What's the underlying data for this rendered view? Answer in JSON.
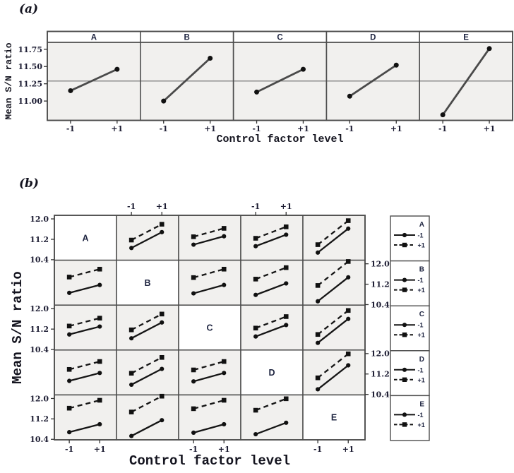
{
  "colors": {
    "panel_bg": "#f1f0ee",
    "diagonal_bg": "#ffffff",
    "border": "#4d4d4d",
    "line_a": "#4a4a4a",
    "line_b": "#151515",
    "marker": "#111111",
    "ref_line": "#8c8c8c",
    "tick_text": "#1d1d33"
  },
  "chart_data": [
    {
      "id": "a",
      "label": "(a)",
      "type": "line",
      "subtype": "main-effects-plot",
      "ylabel": "Mean S/N ratio",
      "xlabel": "Control factor level",
      "x_ticklabels": [
        "-1",
        "+1"
      ],
      "yticks": [
        {
          "label": "11.75",
          "v": 11.75
        },
        {
          "label": "11.50",
          "v": 11.5
        },
        {
          "label": "11.25",
          "v": 11.25
        },
        {
          "label": "11.00",
          "v": 11.0
        }
      ],
      "ylim": [
        10.72,
        11.85
      ],
      "ref_line_mean": 11.29,
      "panels": [
        {
          "factor": "A",
          "values": [
            11.15,
            11.46
          ]
        },
        {
          "factor": "B",
          "values": [
            11.0,
            11.62
          ]
        },
        {
          "factor": "C",
          "values": [
            11.13,
            11.46
          ]
        },
        {
          "factor": "D",
          "values": [
            11.07,
            11.52
          ]
        },
        {
          "factor": "E",
          "values": [
            10.8,
            11.76
          ]
        }
      ]
    },
    {
      "id": "b",
      "label": "(b)",
      "type": "line",
      "subtype": "interaction-plot-matrix",
      "ylabel": "Mean S/N ratio",
      "xlabel": "Control factor level",
      "factors": [
        "A",
        "B",
        "C",
        "D",
        "E"
      ],
      "x_ticklabels": [
        "-1",
        "+1"
      ],
      "yticks": [
        {
          "label": "12.0",
          "v": 12.0
        },
        {
          "label": "11.2",
          "v": 11.2
        },
        {
          "label": "10.4",
          "v": 10.4
        }
      ],
      "ylim": [
        10.38,
        12.14
      ],
      "legend": {
        "items": [
          {
            "label": "-1",
            "line": "solid",
            "marker": "circle"
          },
          {
            "label": "+1",
            "line": "dashed",
            "marker": "square"
          }
        ]
      },
      "cells": [
        {
          "row": "A",
          "col": "B",
          "solid": [
            10.86,
            11.48
          ],
          "dashed": [
            11.17,
            11.79
          ]
        },
        {
          "row": "A",
          "col": "C",
          "solid": [
            10.99,
            11.32
          ],
          "dashed": [
            11.3,
            11.63
          ]
        },
        {
          "row": "A",
          "col": "D",
          "solid": [
            10.93,
            11.38
          ],
          "dashed": [
            11.24,
            11.69
          ]
        },
        {
          "row": "A",
          "col": "E",
          "solid": [
            10.68,
            11.62
          ],
          "dashed": [
            10.99,
            11.93
          ]
        },
        {
          "row": "B",
          "col": "A",
          "solid": [
            10.86,
            11.17
          ],
          "dashed": [
            11.48,
            11.79
          ]
        },
        {
          "row": "B",
          "col": "C",
          "solid": [
            10.84,
            11.17
          ],
          "dashed": [
            11.46,
            11.79
          ]
        },
        {
          "row": "B",
          "col": "D",
          "solid": [
            10.78,
            11.23
          ],
          "dashed": [
            11.4,
            11.85
          ]
        },
        {
          "row": "B",
          "col": "E",
          "solid": [
            10.53,
            11.47
          ],
          "dashed": [
            11.15,
            12.09
          ]
        },
        {
          "row": "C",
          "col": "A",
          "solid": [
            10.99,
            11.3
          ],
          "dashed": [
            11.32,
            11.63
          ]
        },
        {
          "row": "C",
          "col": "B",
          "solid": [
            10.84,
            11.46
          ],
          "dashed": [
            11.17,
            11.79
          ]
        },
        {
          "row": "C",
          "col": "D",
          "solid": [
            10.91,
            11.36
          ],
          "dashed": [
            11.24,
            11.69
          ]
        },
        {
          "row": "C",
          "col": "E",
          "solid": [
            10.66,
            11.6
          ],
          "dashed": [
            10.99,
            11.93
          ]
        },
        {
          "row": "D",
          "col": "A",
          "solid": [
            10.93,
            11.24
          ],
          "dashed": [
            11.38,
            11.69
          ]
        },
        {
          "row": "D",
          "col": "B",
          "solid": [
            10.78,
            11.4
          ],
          "dashed": [
            11.23,
            11.85
          ]
        },
        {
          "row": "D",
          "col": "C",
          "solid": [
            10.91,
            11.24
          ],
          "dashed": [
            11.36,
            11.69
          ]
        },
        {
          "row": "D",
          "col": "E",
          "solid": [
            10.6,
            11.54
          ],
          "dashed": [
            11.05,
            11.99
          ]
        },
        {
          "row": "E",
          "col": "A",
          "solid": [
            10.68,
            10.99
          ],
          "dashed": [
            11.62,
            11.93
          ]
        },
        {
          "row": "E",
          "col": "B",
          "solid": [
            10.53,
            11.15
          ],
          "dashed": [
            11.47,
            12.09
          ]
        },
        {
          "row": "E",
          "col": "C",
          "solid": [
            10.66,
            10.99
          ],
          "dashed": [
            11.6,
            11.93
          ]
        },
        {
          "row": "E",
          "col": "D",
          "solid": [
            10.6,
            11.05
          ],
          "dashed": [
            11.54,
            11.99
          ]
        }
      ]
    }
  ]
}
